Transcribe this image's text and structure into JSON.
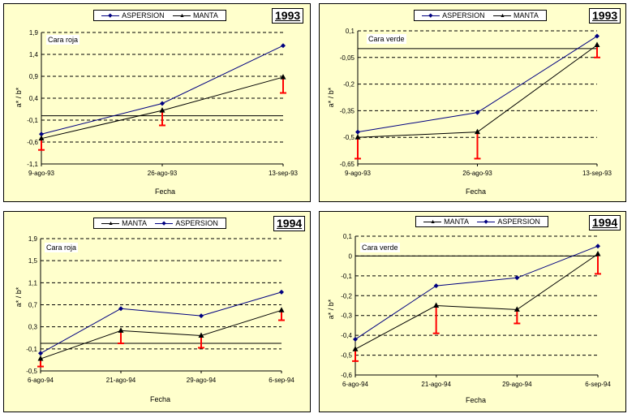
{
  "chart_data": [
    {
      "type": "line",
      "year": "1993",
      "title": "Cara roja",
      "xlabel": "Fecha",
      "ylabel": "a* / b*",
      "categories": [
        "9-ago-93",
        "26-ago-93",
        "13-sep-93"
      ],
      "yticks": [
        "1,9",
        "1,4",
        "0,9",
        "0,4",
        "-0,1",
        "-0,6",
        "-1,1"
      ],
      "ylim": [
        -1.1,
        1.9
      ],
      "series": [
        {
          "name": "ASPERSION",
          "values": [
            -0.42,
            0.28,
            1.6
          ],
          "color": "#000080",
          "marker": "diamond"
        },
        {
          "name": "MANTA",
          "values": [
            -0.52,
            0.12,
            0.88
          ],
          "color": "#000000",
          "marker": "triangle"
        }
      ],
      "errors": [
        {
          "index": 0,
          "low": -0.78
        },
        {
          "index": 1,
          "low": -0.22
        },
        {
          "index": 2,
          "low": 0.52
        }
      ],
      "legend_order": [
        "ASPERSION",
        "MANTA"
      ]
    },
    {
      "type": "line",
      "year": "1993",
      "title": "Cara verde",
      "xlabel": "Fecha",
      "ylabel": "a* / b*",
      "categories": [
        "9-ago-93",
        "26-ago-93",
        "13-sep-93"
      ],
      "yticks": [
        "0,1",
        "-0,05",
        "-0,2",
        "-0,35",
        "-0,5",
        "-0,65"
      ],
      "ylim": [
        -0.65,
        0.1
      ],
      "series": [
        {
          "name": "ASPERSION",
          "values": [
            -0.47,
            -0.36,
            0.07
          ],
          "color": "#000080",
          "marker": "diamond"
        },
        {
          "name": "MANTA",
          "values": [
            -0.5,
            -0.47,
            0.02
          ],
          "color": "#000000",
          "marker": "triangle"
        }
      ],
      "errors": [
        {
          "index": 0,
          "low": -0.62
        },
        {
          "index": 1,
          "low": -0.62
        },
        {
          "index": 2,
          "low": -0.05
        }
      ],
      "legend_order": [
        "ASPERSION",
        "MANTA"
      ]
    },
    {
      "type": "line",
      "year": "1994",
      "title": "Cara roja",
      "xlabel": "Fecha",
      "ylabel": "a* / b*",
      "categories": [
        "6-ago-94",
        "21-ago-94",
        "29-ago-94",
        "6-sep-94"
      ],
      "yticks": [
        "1,9",
        "1,5",
        "1,1",
        "0,7",
        "0,3",
        "-0,1",
        "-0,5"
      ],
      "ylim": [
        -0.5,
        1.9
      ],
      "series": [
        {
          "name": "MANTA",
          "values": [
            -0.28,
            0.23,
            0.14,
            0.6
          ],
          "color": "#000000",
          "marker": "triangle"
        },
        {
          "name": "ASPERSION",
          "values": [
            -0.18,
            0.63,
            0.5,
            0.93
          ],
          "color": "#000080",
          "marker": "diamond"
        }
      ],
      "errors": [
        {
          "index": 0,
          "low": -0.42
        },
        {
          "index": 1,
          "low": 0.0
        },
        {
          "index": 2,
          "low": -0.08
        },
        {
          "index": 3,
          "low": 0.42
        }
      ],
      "legend_order": [
        "MANTA",
        "ASPERSION"
      ]
    },
    {
      "type": "line",
      "year": "1994",
      "title": "Cara verde",
      "xlabel": "Fecha",
      "ylabel": "a* / b*",
      "categories": [
        "6-ago-94",
        "21-ago-94",
        "29-ago-94",
        "6-sep-94"
      ],
      "yticks": [
        "0,1",
        "0",
        "-0,1",
        "-0,2",
        "-0,3",
        "-0,4",
        "-0,5",
        "-0,6"
      ],
      "ylim": [
        -0.6,
        0.1
      ],
      "series": [
        {
          "name": "MANTA",
          "values": [
            -0.47,
            -0.25,
            -0.27,
            0.01
          ],
          "color": "#000000",
          "marker": "triangle"
        },
        {
          "name": "ASPERSION",
          "values": [
            -0.42,
            -0.15,
            -0.11,
            0.05
          ],
          "color": "#000080",
          "marker": "diamond"
        }
      ],
      "errors": [
        {
          "index": 0,
          "low": -0.53
        },
        {
          "index": 1,
          "low": -0.39
        },
        {
          "index": 2,
          "low": -0.34
        },
        {
          "index": 3,
          "low": -0.09
        }
      ],
      "legend_order": [
        "MANTA",
        "ASPERSION"
      ]
    }
  ]
}
